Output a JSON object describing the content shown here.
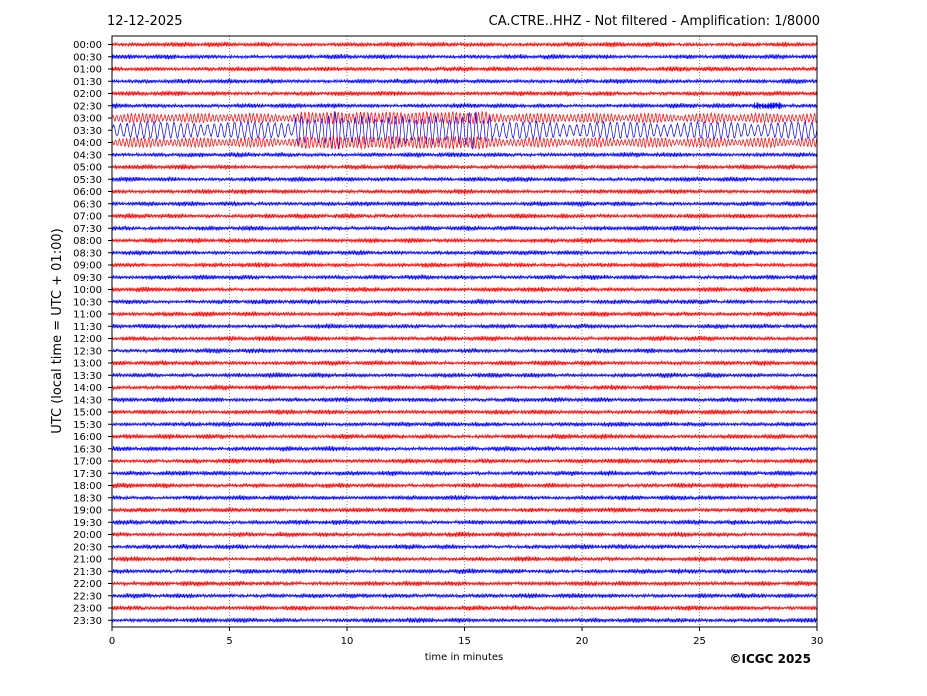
{
  "header": {
    "date": "12-12-2025",
    "title": "CA.CTRE..HHZ - Not filtered - Amplification: 1/8000"
  },
  "footer": {
    "copyright": "©ICGC 2025"
  },
  "chart_data": {
    "type": "line",
    "xlabel": "time in minutes",
    "ylabel": "UTC (local time = UTC + 01:00)",
    "xlim": [
      0,
      30
    ],
    "xticks": [
      0,
      5,
      10,
      15,
      20,
      25,
      30
    ],
    "xtick_labels": [
      "0",
      "5",
      "10",
      "15",
      "20",
      "25",
      "30"
    ],
    "grid": "vertical dotted",
    "row_labels": [
      "00:00",
      "00:30",
      "01:00",
      "01:30",
      "02:00",
      "02:30",
      "03:00",
      "03:30",
      "04:00",
      "04:30",
      "05:00",
      "05:30",
      "06:00",
      "06:30",
      "07:00",
      "07:30",
      "08:00",
      "08:30",
      "09:00",
      "09:30",
      "10:00",
      "10:30",
      "11:00",
      "11:30",
      "12:00",
      "12:30",
      "13:00",
      "13:30",
      "14:00",
      "14:30",
      "15:00",
      "15:30",
      "16:00",
      "16:30",
      "17:00",
      "17:30",
      "18:00",
      "18:30",
      "19:00",
      "19:30",
      "20:00",
      "20:30",
      "21:00",
      "21:30",
      "22:00",
      "22:30",
      "23:00",
      "23:30"
    ],
    "trace_colors": [
      "#ff0000",
      "#0000ff"
    ],
    "events": [
      {
        "row": "03:30",
        "amplitude": "large",
        "start_minute": 0,
        "end_minute": 30
      },
      {
        "row": "03:00",
        "amplitude": "medium",
        "start_minute": 0,
        "end_minute": 30
      },
      {
        "row": "04:00",
        "amplitude": "medium",
        "start_minute": 0,
        "end_minute": 30
      },
      {
        "row": "02:30",
        "amplitude": "small",
        "start_minute": 27.3,
        "end_minute": 28.5
      }
    ]
  }
}
